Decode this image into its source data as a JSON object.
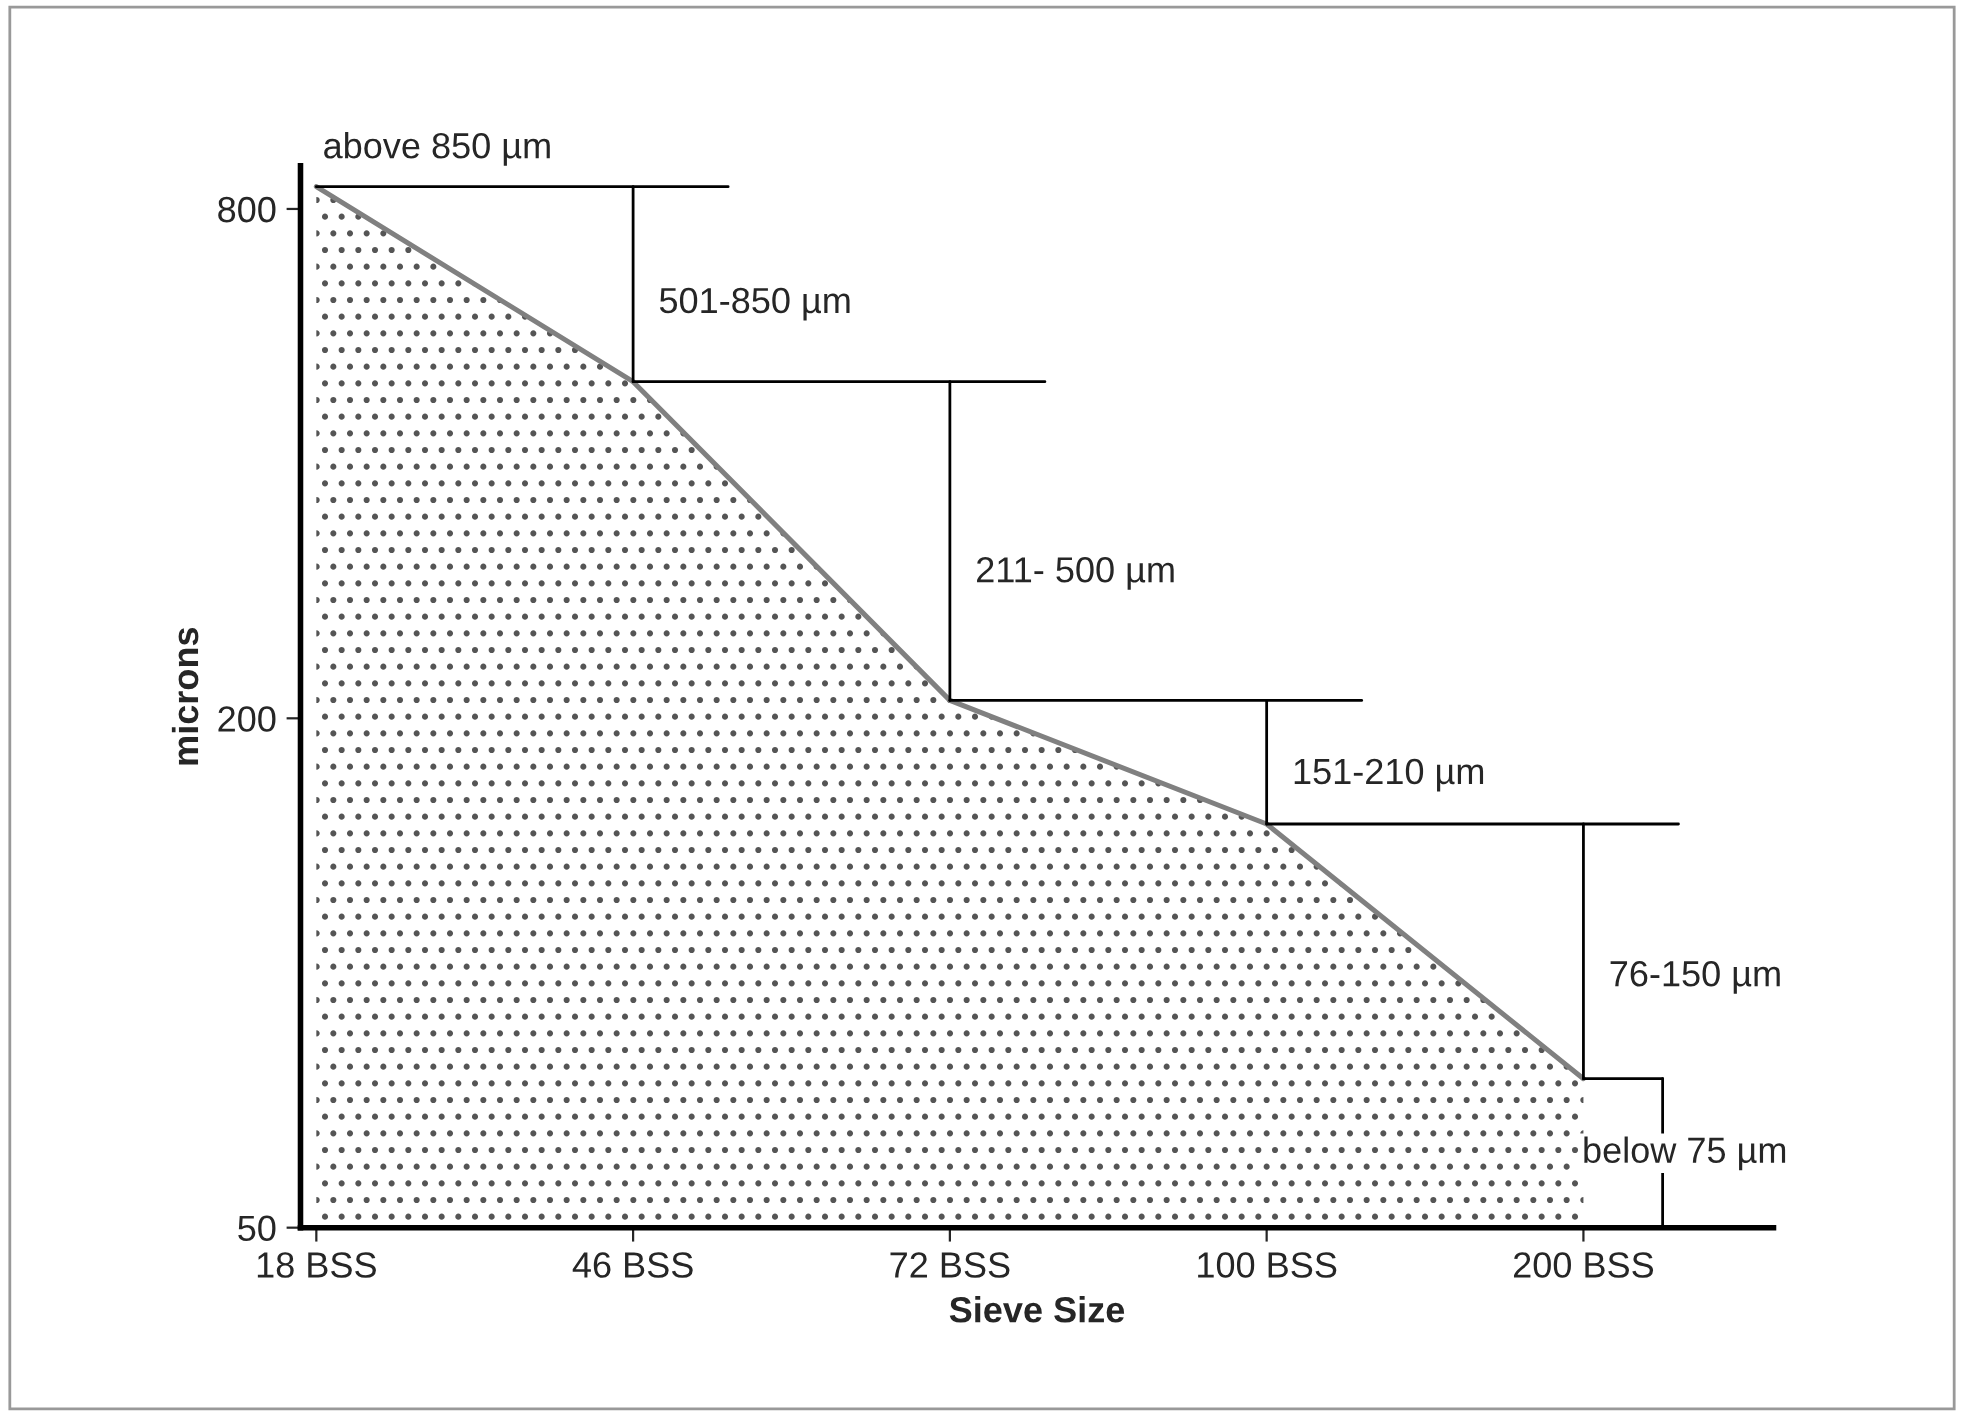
{
  "chart_data": {
    "type": "area",
    "xlabel": "Sieve Size",
    "ylabel": "microns",
    "categories": [
      "18 BSS",
      "46 BSS",
      "72 BSS",
      "100 BSS",
      "200 BSS"
    ],
    "series": [
      {
        "color": "#808080",
        "values": [
          850,
          500,
          210,
          150,
          75
        ]
      }
    ],
    "log": true,
    "ylim": [
      50,
      900
    ],
    "yticks": [
      50,
      200,
      800
    ],
    "grid": false,
    "legend": false,
    "annotations": [
      "above 850 µm",
      "501-850 µm",
      "211- 500 µm",
      "151-210 µm",
      "76-150 µm",
      "below 75 µm"
    ]
  }
}
